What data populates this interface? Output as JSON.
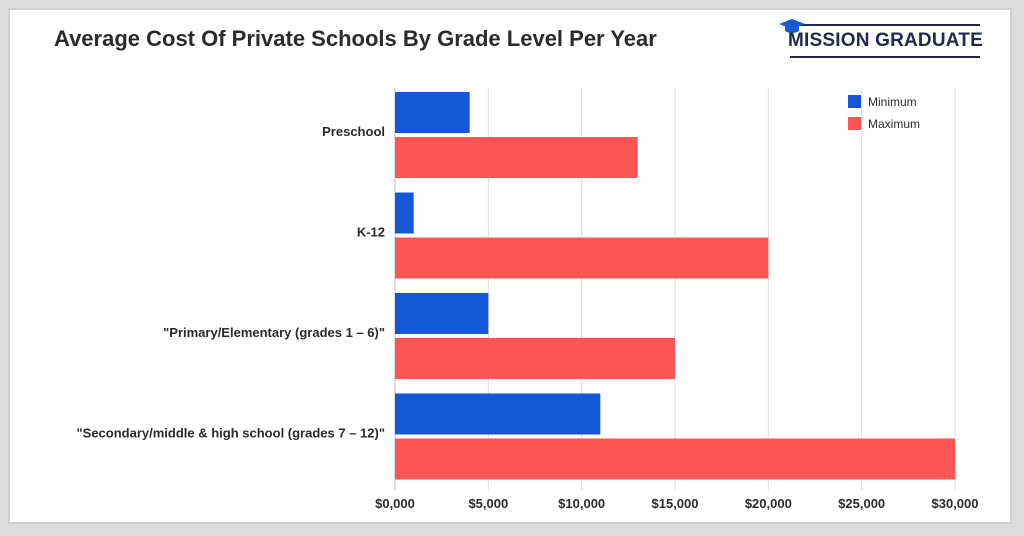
{
  "title": "Average Cost Of Private Schools By Grade Level Per Year",
  "logo": {
    "text": "MISSION GRADUATE",
    "icon": "graduation-cap-icon",
    "color": "#1f2b4d"
  },
  "chart_data": {
    "type": "bar",
    "orientation": "horizontal",
    "title": "Average Cost Of Private Schools By Grade Level Per Year",
    "categories": [
      "Preschool",
      "K-12",
      "\"Primary/Elementary (grades 1 – 6)\"",
      "\"Secondary/middle & high school (grades 7 – 12)\""
    ],
    "series": [
      {
        "name": "Minimum",
        "color": "#1558d6",
        "values": [
          4000,
          1000,
          5000,
          11000
        ]
      },
      {
        "name": "Maximum",
        "color": "#ff5555",
        "values": [
          13000,
          20000,
          15000,
          30000
        ]
      }
    ],
    "xlim": [
      0,
      30000
    ],
    "xticks": [
      0,
      5000,
      10000,
      15000,
      20000,
      25000,
      30000
    ],
    "xtick_labels": [
      "$0,000",
      "$5,000",
      "$10,000",
      "$15,000",
      "$20,000",
      "$25,000",
      "$30,000"
    ],
    "xlabel": "",
    "ylabel": "",
    "grid": true,
    "legend_position": "top-right"
  }
}
